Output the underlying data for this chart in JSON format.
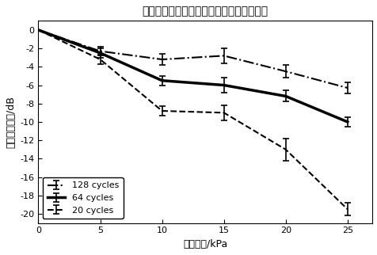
{
  "title": "外周压力变化对超谐波的影响（实验数据）",
  "xlabel": "外周过压/kPa",
  "ylabel": "谐波幅值变化/dB",
  "xlim": [
    0,
    27
  ],
  "ylim": [
    -21,
    1
  ],
  "xticks": [
    0,
    5,
    10,
    15,
    20,
    25
  ],
  "yticks": [
    0,
    -2,
    -4,
    -6,
    -8,
    -10,
    -12,
    -14,
    -16,
    -18,
    -20
  ],
  "series": [
    {
      "label": "128 cycles",
      "x": [
        0,
        5,
        10,
        15,
        20,
        25
      ],
      "y": [
        0,
        -2.3,
        -3.2,
        -2.8,
        -4.5,
        -6.3
      ],
      "yerr": [
        0.0,
        0.5,
        0.6,
        0.8,
        0.7,
        0.6
      ],
      "color": "#000000",
      "linestyle": "-.",
      "linewidth": 1.5,
      "marker": "None",
      "markersize": 4
    },
    {
      "label": "64 cycles",
      "x": [
        0,
        5,
        10,
        15,
        20,
        25
      ],
      "y": [
        0,
        -2.5,
        -5.5,
        -6.0,
        -7.2,
        -10.0
      ],
      "yerr": [
        0.0,
        0.5,
        0.5,
        0.8,
        0.6,
        0.5
      ],
      "color": "#000000",
      "linestyle": "-",
      "linewidth": 2.5,
      "marker": "None",
      "markersize": 4
    },
    {
      "label": "20 cycles",
      "x": [
        0,
        5,
        10,
        15,
        20,
        25
      ],
      "y": [
        0,
        -3.2,
        -8.8,
        -9.0,
        -13.0,
        -19.5
      ],
      "yerr": [
        0.0,
        0.5,
        0.5,
        0.8,
        1.2,
        0.7
      ],
      "color": "#000000",
      "linestyle": "--",
      "linewidth": 1.5,
      "marker": "None",
      "markersize": 4
    }
  ],
  "legend_loc": "lower left",
  "background_color": "#ffffff",
  "grid": false
}
